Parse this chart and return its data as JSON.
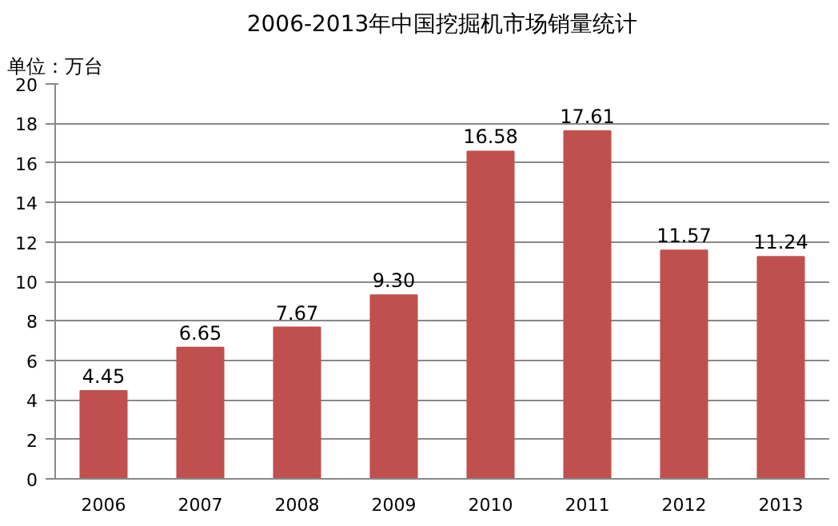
{
  "chart_data": {
    "type": "bar",
    "title": "2006-2013年中国挖掘机市场销量统计",
    "annotations": [
      "单位：万台"
    ],
    "categories": [
      "2006",
      "2007",
      "2008",
      "2009",
      "2010",
      "2011",
      "2012",
      "2013"
    ],
    "values": [
      4.45,
      6.65,
      7.67,
      9.3,
      16.58,
      17.61,
      11.57,
      11.24
    ],
    "value_labels": [
      "4.45",
      "6.65",
      "7.67",
      "9.30",
      "16.58",
      "17.61",
      "11.57",
      "11.24"
    ],
    "color": "#c0504d",
    "ylim": [
      0,
      20
    ],
    "yticks": [
      0,
      2,
      4,
      6,
      8,
      10,
      12,
      14,
      16,
      18,
      20
    ],
    "grid": "y"
  }
}
